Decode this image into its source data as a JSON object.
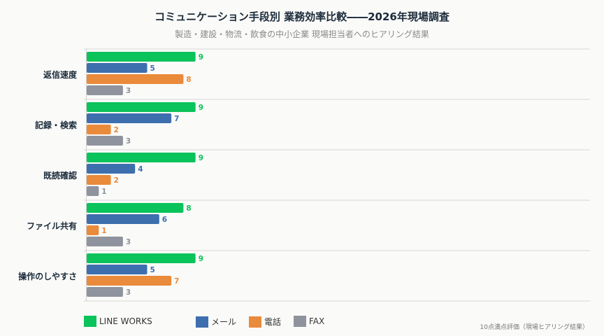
{
  "chart_data": {
    "type": "bar",
    "orientation": "horizontal",
    "title": "コミュニケーション手段別 業務効率比較――2026年現場調査",
    "subtitle": "製造・建設・物流・飲食の中小企業 現場担当者へのヒアリング結果",
    "categories": [
      "返信速度",
      "記録・検索",
      "既読確認",
      "ファイル共有",
      "操作のしやすさ"
    ],
    "series": [
      {
        "name": "LINE WORKS",
        "color": "#0bc35b",
        "values": [
          9,
          9,
          9,
          8,
          9
        ]
      },
      {
        "name": "メール",
        "color": "#3d6fae",
        "values": [
          5,
          7,
          4,
          6,
          5
        ]
      },
      {
        "name": "電話",
        "color": "#ea8a3b",
        "values": [
          8,
          2,
          2,
          1,
          7
        ]
      },
      {
        "name": "FAX",
        "color": "#8e939d",
        "values": [
          3,
          3,
          1,
          3,
          3
        ]
      }
    ],
    "xlim": [
      0,
      10
    ],
    "legend_position": "bottom-left",
    "note": "10点満点評価（現場ヒアリング結果）"
  }
}
